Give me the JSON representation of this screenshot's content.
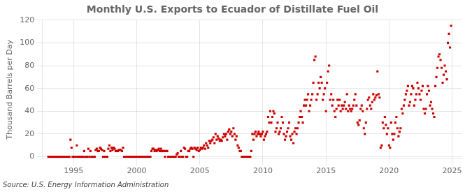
{
  "chart_data": {
    "type": "scatter",
    "title": "Monthly U.S. Exports to Ecuador of Distillate Fuel Oil",
    "y_label": "Thousand Barrels per Day",
    "annotations": [
      "Source: U.S. Energy Information Administration"
    ],
    "color": "#cc0000",
    "marker": "square",
    "grid": true,
    "xlim": [
      1992.5,
      2025.8
    ],
    "xticks": [
      1995,
      2000,
      2005,
      2010,
      2015,
      2020,
      2025
    ],
    "ylim": [
      -2,
      120
    ],
    "yticks": [
      0,
      20,
      40,
      60,
      80,
      100,
      120
    ],
    "x": [
      1993.0,
      1993.083,
      1993.167,
      1993.25,
      1993.333,
      1993.417,
      1993.5,
      1993.583,
      1993.667,
      1993.75,
      1993.833,
      1993.917,
      1994.0,
      1994.083,
      1994.167,
      1994.25,
      1994.333,
      1994.417,
      1994.5,
      1994.583,
      1994.667,
      1994.75,
      1994.833,
      1994.917,
      1995.0,
      1995.083,
      1995.167,
      1995.25,
      1995.333,
      1995.417,
      1995.5,
      1995.583,
      1995.667,
      1995.75,
      1995.833,
      1995.917,
      1996.0,
      1996.083,
      1996.167,
      1996.25,
      1996.333,
      1996.417,
      1996.5,
      1996.583,
      1996.667,
      1996.75,
      1996.833,
      1996.917,
      1997.0,
      1997.083,
      1997.167,
      1997.25,
      1997.333,
      1997.417,
      1997.5,
      1997.583,
      1997.667,
      1997.75,
      1997.833,
      1997.917,
      1998.0,
      1998.083,
      1998.167,
      1998.25,
      1998.333,
      1998.417,
      1998.5,
      1998.583,
      1998.667,
      1998.75,
      1998.833,
      1998.917,
      1999.0,
      1999.083,
      1999.167,
      1999.25,
      1999.333,
      1999.417,
      1999.5,
      1999.583,
      1999.667,
      1999.75,
      1999.833,
      1999.917,
      2000.0,
      2000.083,
      2000.167,
      2000.25,
      2000.333,
      2000.417,
      2000.5,
      2000.583,
      2000.667,
      2000.75,
      2000.833,
      2000.917,
      2001.0,
      2001.083,
      2001.167,
      2001.25,
      2001.333,
      2001.417,
      2001.5,
      2001.583,
      2001.667,
      2001.75,
      2001.833,
      2001.917,
      2002.0,
      2002.083,
      2002.167,
      2002.25,
      2002.333,
      2002.417,
      2002.5,
      2002.583,
      2002.667,
      2002.75,
      2002.833,
      2002.917,
      2003.0,
      2003.083,
      2003.167,
      2003.25,
      2003.333,
      2003.417,
      2003.5,
      2003.583,
      2003.667,
      2003.75,
      2003.833,
      2003.917,
      2004.0,
      2004.083,
      2004.167,
      2004.25,
      2004.333,
      2004.417,
      2004.5,
      2004.583,
      2004.667,
      2004.75,
      2004.833,
      2004.917,
      2005.0,
      2005.083,
      2005.167,
      2005.25,
      2005.333,
      2005.417,
      2005.5,
      2005.583,
      2005.667,
      2005.75,
      2005.833,
      2005.917,
      2006.0,
      2006.083,
      2006.167,
      2006.25,
      2006.333,
      2006.417,
      2006.5,
      2006.583,
      2006.667,
      2006.75,
      2006.833,
      2006.917,
      2007.0,
      2007.083,
      2007.167,
      2007.25,
      2007.333,
      2007.417,
      2007.5,
      2007.583,
      2007.667,
      2007.75,
      2007.833,
      2007.917,
      2008.0,
      2008.083,
      2008.167,
      2008.25,
      2008.333,
      2008.417,
      2008.5,
      2008.583,
      2008.667,
      2008.75,
      2008.833,
      2008.917,
      2009.0,
      2009.083,
      2009.167,
      2009.25,
      2009.333,
      2009.417,
      2009.5,
      2009.583,
      2009.667,
      2009.75,
      2009.833,
      2009.917,
      2010.0,
      2010.083,
      2010.167,
      2010.25,
      2010.333,
      2010.417,
      2010.5,
      2010.583,
      2010.667,
      2010.75,
      2010.833,
      2010.917,
      2011.0,
      2011.083,
      2011.167,
      2011.25,
      2011.333,
      2011.417,
      2011.5,
      2011.583,
      2011.667,
      2011.75,
      2011.833,
      2011.917,
      2012.0,
      2012.083,
      2012.167,
      2012.25,
      2012.333,
      2012.417,
      2012.5,
      2012.583,
      2012.667,
      2012.75,
      2012.833,
      2012.917,
      2013.0,
      2013.083,
      2013.167,
      2013.25,
      2013.333,
      2013.417,
      2013.5,
      2013.583,
      2013.667,
      2013.75,
      2013.833,
      2013.917,
      2014.0,
      2014.083,
      2014.167,
      2014.25,
      2014.333,
      2014.417,
      2014.5,
      2014.583,
      2014.667,
      2014.75,
      2014.833,
      2014.917,
      2015.0,
      2015.083,
      2015.167,
      2015.25,
      2015.333,
      2015.417,
      2015.5,
      2015.583,
      2015.667,
      2015.75,
      2015.833,
      2015.917,
      2016.0,
      2016.083,
      2016.167,
      2016.25,
      2016.333,
      2016.417,
      2016.5,
      2016.583,
      2016.667,
      2016.75,
      2016.833,
      2016.917,
      2017.0,
      2017.083,
      2017.167,
      2017.25,
      2017.333,
      2017.417,
      2017.5,
      2017.583,
      2017.667,
      2017.75,
      2017.833,
      2017.917,
      2018.0,
      2018.083,
      2018.167,
      2018.25,
      2018.333,
      2018.417,
      2018.5,
      2018.583,
      2018.667,
      2018.75,
      2018.833,
      2018.917,
      2019.0,
      2019.083,
      2019.167,
      2019.25,
      2019.333,
      2019.417,
      2019.5,
      2019.583,
      2019.667,
      2019.75,
      2019.833,
      2019.917,
      2020.0,
      2020.083,
      2020.167,
      2020.25,
      2020.333,
      2020.417,
      2020.5,
      2020.583,
      2020.667,
      2020.75,
      2020.833,
      2020.917,
      2021.0,
      2021.083,
      2021.167,
      2021.25,
      2021.333,
      2021.417,
      2021.5,
      2021.583,
      2021.667,
      2021.75,
      2021.833,
      2021.917,
      2022.0,
      2022.083,
      2022.167,
      2022.25,
      2022.333,
      2022.417,
      2022.5,
      2022.583,
      2022.667,
      2022.75,
      2022.833,
      2022.917,
      2023.0,
      2023.083,
      2023.167,
      2023.25,
      2023.333,
      2023.417,
      2023.5,
      2023.583,
      2023.667,
      2023.75,
      2023.833,
      2023.917,
      2024.0,
      2024.083,
      2024.167,
      2024.25,
      2024.333,
      2024.417,
      2024.5,
      2024.583,
      2024.667,
      2024.75,
      2024.833,
      2024.917
    ],
    "values": [
      0,
      0,
      0,
      0,
      0,
      0,
      0,
      0,
      0,
      0,
      0,
      0,
      0,
      0,
      0,
      0,
      0,
      0,
      0,
      0,
      0,
      15,
      8,
      0,
      0,
      0,
      0,
      10,
      0,
      0,
      0,
      0,
      0,
      0,
      5,
      0,
      0,
      0,
      7,
      0,
      5,
      0,
      0,
      0,
      0,
      6,
      7,
      5,
      5,
      8,
      7,
      6,
      0,
      5,
      0,
      0,
      0,
      7,
      10,
      5,
      8,
      6,
      8,
      7,
      5,
      5,
      5,
      6,
      6,
      6,
      5,
      8,
      0,
      0,
      0,
      0,
      0,
      0,
      0,
      0,
      0,
      0,
      0,
      0,
      0,
      0,
      0,
      0,
      0,
      0,
      0,
      0,
      0,
      0,
      0,
      0,
      0,
      0,
      5,
      7,
      7,
      5,
      6,
      5,
      6,
      7,
      5,
      7,
      5,
      5,
      5,
      0,
      5,
      5,
      0,
      0,
      0,
      0,
      0,
      0,
      0,
      0,
      2,
      3,
      0,
      0,
      5,
      0,
      0,
      8,
      7,
      0,
      0,
      5,
      5,
      7,
      8,
      7,
      0,
      8,
      7,
      6,
      8,
      5,
      6,
      8,
      7,
      8,
      10,
      7,
      12,
      10,
      8,
      14,
      12,
      14,
      15,
      17,
      12,
      20,
      15,
      18,
      16,
      14,
      15,
      14,
      17,
      20,
      18,
      20,
      15,
      22,
      24,
      20,
      22,
      18,
      25,
      20,
      15,
      18,
      10,
      8,
      5,
      5,
      0,
      0,
      0,
      0,
      0,
      0,
      0,
      0,
      0,
      5,
      20,
      15,
      20,
      22,
      18,
      20,
      22,
      20,
      18,
      20,
      22,
      15,
      18,
      20,
      22,
      35,
      30,
      40,
      30,
      35,
      40,
      38,
      22,
      25,
      30,
      20,
      22,
      25,
      35,
      30,
      20,
      15,
      18,
      22,
      25,
      30,
      18,
      15,
      20,
      12,
      22,
      25,
      20,
      25,
      30,
      35,
      40,
      35,
      30,
      45,
      50,
      45,
      50,
      55,
      40,
      45,
      50,
      55,
      65,
      85,
      88,
      50,
      55,
      65,
      60,
      70,
      65,
      50,
      55,
      60,
      40,
      65,
      75,
      80,
      50,
      55,
      45,
      50,
      40,
      35,
      42,
      50,
      45,
      50,
      40,
      45,
      42,
      45,
      48,
      42,
      55,
      40,
      45,
      42,
      40,
      42,
      45,
      50,
      55,
      45,
      30,
      28,
      32,
      42,
      45,
      40,
      25,
      20,
      30,
      42,
      50,
      52,
      45,
      42,
      48,
      55,
      50,
      52,
      54,
      75,
      55,
      52,
      8,
      10,
      30,
      25,
      35,
      28,
      20,
      25,
      10,
      8,
      30,
      20,
      15,
      20,
      30,
      35,
      25,
      18,
      22,
      25,
      42,
      38,
      45,
      50,
      55,
      58,
      62,
      45,
      48,
      55,
      62,
      60,
      45,
      50,
      55,
      65,
      60,
      55,
      50,
      58,
      62,
      42,
      38,
      42,
      55,
      62,
      58,
      45,
      48,
      42,
      38,
      35,
      62,
      70,
      78,
      88,
      90,
      85,
      78,
      65,
      72,
      80,
      75,
      68,
      100,
      108,
      96,
      115
    ]
  }
}
